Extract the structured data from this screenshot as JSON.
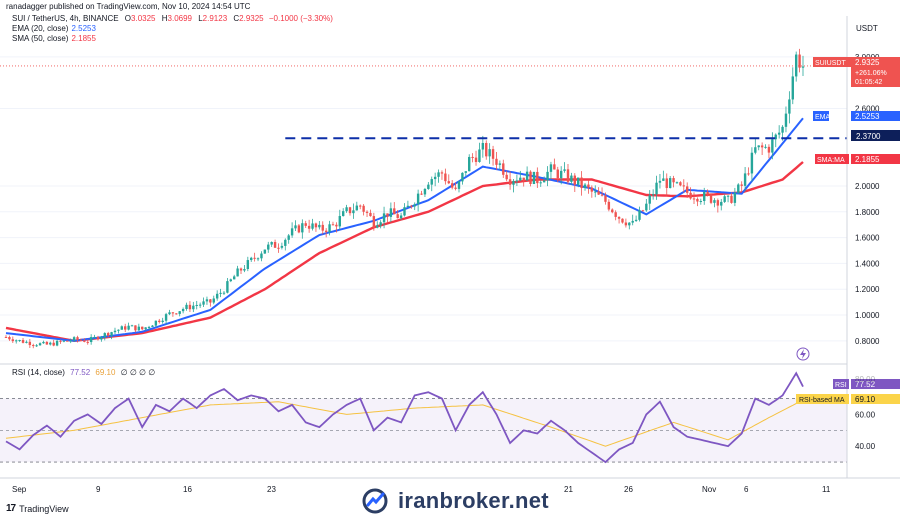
{
  "header": {
    "published_line": "ranadagger published on TradingView.com, Nov 10, 2024 14:54 UTC"
  },
  "legend": {
    "symbol_line": "SUI / TetherUS, 4h, BINANCE",
    "ohlc": {
      "o_label": "O",
      "o_value": "3.0325",
      "h_label": "H",
      "h_value": "3.0699",
      "l_label": "L",
      "l_value": "2.9123",
      "c_label": "C",
      "c_value": "2.9325",
      "change": "−0.1000 (−3.30%)"
    },
    "ema_label": "EMA (20, close)",
    "ema_value": "2.5253",
    "sma_label": "SMA (50, close)",
    "sma_value": "2.1855",
    "rsi_label": "RSI (14, close)",
    "rsi_value": "77.52",
    "rsi_ma_value": "69.10",
    "rsi_extra": "∅ ∅ ∅ ∅"
  },
  "price_axis": {
    "currency": "USDT",
    "ticks": [
      "3.0000",
      "2.6000",
      "2.0000",
      "1.8000",
      "1.6000",
      "1.4000",
      "1.2000",
      "1.0000",
      "0.8000"
    ],
    "tick_values": [
      3.0,
      2.6,
      2.0,
      1.8,
      1.6,
      1.4,
      1.2,
      1.0,
      0.8
    ],
    "last_price_tag": {
      "symbol": "SUIUSDT",
      "price": "2.9325",
      "change": "+261.06%",
      "countdown": "01:05:42"
    },
    "ema_tag": {
      "label": "EMA",
      "value": "2.5253"
    },
    "level_tag": {
      "value": "2.3700"
    },
    "sma_tag": {
      "label": "SMA:MA",
      "value": "2.1855"
    }
  },
  "rsi_axis": {
    "ticks": [
      "60.00",
      "40.00"
    ],
    "tick_values": [
      60,
      40
    ],
    "hidden_tick": "80.00",
    "rsi_tag": {
      "label": "RSI",
      "value": "77.52"
    },
    "rsi_ma_tag": {
      "label": "RSI-based MA",
      "value": "69.10"
    }
  },
  "time_axis": {
    "labels": [
      "Sep",
      "9",
      "16",
      "23",
      "21",
      "26",
      "Nov",
      "6",
      "11"
    ]
  },
  "footer": {
    "brand": "TradingView",
    "watermark": "iranbroker.net"
  },
  "colors": {
    "up": "#26a69a",
    "down": "#ef5350",
    "ema": "#2962ff",
    "sma": "#f23645",
    "rsi": "#7e57c2",
    "rsi_ma": "#f5c242",
    "level": "#0d2fa8",
    "accent": "#2962ff"
  },
  "chart_data": {
    "type": "candlestick",
    "symbol": "SUI / TetherUS",
    "interval": "4h",
    "exchange": "BINANCE",
    "price_ylim": [
      0.76,
      3.1
    ],
    "horizontal_level": 2.37,
    "x_label_dates": [
      "Sep",
      "9",
      "16",
      "23",
      "21",
      "26",
      "Nov",
      "6",
      "11"
    ],
    "price_path": [
      [
        0,
        0.83
      ],
      [
        4,
        0.8
      ],
      [
        8,
        0.78
      ],
      [
        12,
        0.77
      ],
      [
        16,
        0.79
      ],
      [
        20,
        0.81
      ],
      [
        24,
        0.8
      ],
      [
        28,
        0.84
      ],
      [
        32,
        0.88
      ],
      [
        36,
        0.91
      ],
      [
        40,
        0.89
      ],
      [
        44,
        0.95
      ],
      [
        48,
        1.01
      ],
      [
        52,
        1.05
      ],
      [
        56,
        1.08
      ],
      [
        60,
        1.1
      ],
      [
        64,
        1.2
      ],
      [
        68,
        1.33
      ],
      [
        72,
        1.42
      ],
      [
        76,
        1.52
      ],
      [
        80,
        1.55
      ],
      [
        84,
        1.64
      ],
      [
        88,
        1.71
      ],
      [
        92,
        1.66
      ],
      [
        96,
        1.69
      ],
      [
        100,
        1.8
      ],
      [
        104,
        1.85
      ],
      [
        108,
        1.72
      ],
      [
        112,
        1.79
      ],
      [
        116,
        1.76
      ],
      [
        120,
        1.9
      ],
      [
        124,
        2.05
      ],
      [
        128,
        2.1
      ],
      [
        132,
        1.95
      ],
      [
        136,
        2.2
      ],
      [
        140,
        2.28
      ],
      [
        144,
        2.2
      ],
      [
        148,
        2.06
      ],
      [
        152,
        2.08
      ],
      [
        156,
        2.05
      ],
      [
        160,
        2.12
      ],
      [
        164,
        2.08
      ],
      [
        168,
        2.02
      ],
      [
        172,
        1.95
      ],
      [
        176,
        1.88
      ],
      [
        180,
        1.76
      ],
      [
        184,
        1.7
      ],
      [
        188,
        1.85
      ],
      [
        192,
        2.05
      ],
      [
        196,
        2.0
      ],
      [
        200,
        1.95
      ],
      [
        204,
        1.92
      ],
      [
        208,
        1.9
      ],
      [
        212,
        1.88
      ],
      [
        216,
        2.0
      ],
      [
        220,
        2.28
      ],
      [
        224,
        2.3
      ],
      [
        228,
        2.45
      ],
      [
        232,
        3.0
      ],
      [
        234,
        2.93
      ]
    ],
    "ema20_path": [
      [
        0,
        0.86
      ],
      [
        20,
        0.8
      ],
      [
        40,
        0.87
      ],
      [
        60,
        1.04
      ],
      [
        76,
        1.36
      ],
      [
        92,
        1.62
      ],
      [
        108,
        1.73
      ],
      [
        124,
        1.89
      ],
      [
        140,
        2.15
      ],
      [
        156,
        2.07
      ],
      [
        172,
        1.98
      ],
      [
        188,
        1.78
      ],
      [
        200,
        1.97
      ],
      [
        216,
        1.94
      ],
      [
        224,
        2.2
      ],
      [
        234,
        2.5253
      ]
    ],
    "sma50_path": [
      [
        0,
        0.9
      ],
      [
        20,
        0.8
      ],
      [
        40,
        0.86
      ],
      [
        60,
        0.98
      ],
      [
        76,
        1.2
      ],
      [
        92,
        1.48
      ],
      [
        108,
        1.68
      ],
      [
        124,
        1.8
      ],
      [
        140,
        2.0
      ],
      [
        156,
        2.05
      ],
      [
        172,
        2.05
      ],
      [
        188,
        1.93
      ],
      [
        200,
        1.92
      ],
      [
        216,
        1.95
      ],
      [
        228,
        2.05
      ],
      [
        234,
        2.1855
      ]
    ],
    "rsi_ylim": [
      25,
      88
    ],
    "rsi_bands": [
      70,
      50,
      30
    ],
    "rsi_path": [
      [
        0,
        43
      ],
      [
        4,
        38
      ],
      [
        8,
        47
      ],
      [
        12,
        53
      ],
      [
        16,
        46
      ],
      [
        20,
        56
      ],
      [
        24,
        60
      ],
      [
        28,
        54
      ],
      [
        32,
        64
      ],
      [
        36,
        70
      ],
      [
        40,
        52
      ],
      [
        44,
        66
      ],
      [
        48,
        62
      ],
      [
        52,
        70
      ],
      [
        56,
        64
      ],
      [
        60,
        72
      ],
      [
        64,
        76
      ],
      [
        68,
        69
      ],
      [
        72,
        72
      ],
      [
        76,
        70
      ],
      [
        80,
        62
      ],
      [
        84,
        66
      ],
      [
        88,
        55
      ],
      [
        92,
        52
      ],
      [
        96,
        60
      ],
      [
        100,
        66
      ],
      [
        104,
        70
      ],
      [
        108,
        50
      ],
      [
        112,
        58
      ],
      [
        116,
        55
      ],
      [
        120,
        72
      ],
      [
        124,
        74
      ],
      [
        128,
        70
      ],
      [
        132,
        50
      ],
      [
        136,
        66
      ],
      [
        140,
        74
      ],
      [
        144,
        60
      ],
      [
        148,
        42
      ],
      [
        152,
        50
      ],
      [
        156,
        48
      ],
      [
        160,
        56
      ],
      [
        164,
        50
      ],
      [
        168,
        42
      ],
      [
        172,
        36
      ],
      [
        176,
        30
      ],
      [
        180,
        38
      ],
      [
        184,
        42
      ],
      [
        188,
        60
      ],
      [
        192,
        68
      ],
      [
        196,
        52
      ],
      [
        200,
        46
      ],
      [
        204,
        44
      ],
      [
        208,
        42
      ],
      [
        212,
        40
      ],
      [
        216,
        48
      ],
      [
        220,
        70
      ],
      [
        224,
        66
      ],
      [
        228,
        72
      ],
      [
        232,
        86
      ],
      [
        234,
        77.52
      ]
    ],
    "rsi_ma_path": [
      [
        0,
        45
      ],
      [
        20,
        50
      ],
      [
        40,
        58
      ],
      [
        60,
        66
      ],
      [
        80,
        68
      ],
      [
        100,
        60
      ],
      [
        120,
        64
      ],
      [
        140,
        66
      ],
      [
        160,
        52
      ],
      [
        176,
        40
      ],
      [
        196,
        55
      ],
      [
        212,
        44
      ],
      [
        224,
        58
      ],
      [
        234,
        69.1
      ]
    ]
  }
}
